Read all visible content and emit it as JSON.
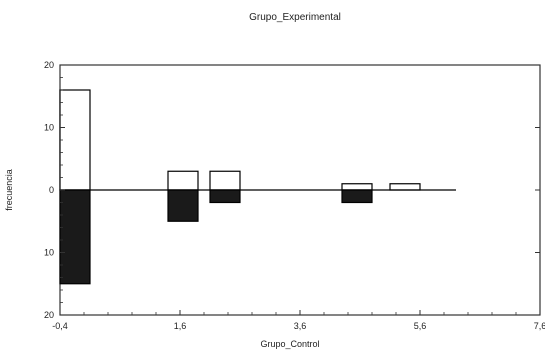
{
  "chart_data": {
    "type": "bar",
    "title": "Grupo_Experimental",
    "xlabel": "Grupo_Control",
    "ylabel": "frecuencia",
    "xlim": [
      -0.4,
      7.6
    ],
    "ylim": [
      -20,
      20
    ],
    "x_ticks": [
      -0.4,
      1.6,
      3.6,
      5.6,
      7.6
    ],
    "x_tick_labels": [
      "-0,4",
      "1,6",
      "3,6",
      "5,6",
      "7,6"
    ],
    "y_ticks": [
      20,
      10,
      0,
      -10,
      -20
    ],
    "y_tick_labels": [
      "20",
      "10",
      "0",
      "10",
      "20"
    ],
    "bar_width": 0.5,
    "baseline_end": 6.2,
    "series": [
      {
        "color": "#ffffff",
        "bars": [
          {
            "x": -0.15,
            "value": 16
          },
          {
            "x": 1.65,
            "value": 3
          },
          {
            "x": 2.35,
            "value": 3
          },
          {
            "x": 4.55,
            "value": 1
          },
          {
            "x": 5.35,
            "value": 1
          }
        ]
      },
      {
        "color": "#1a1a1a",
        "bars": [
          {
            "x": -0.15,
            "value": -15
          },
          {
            "x": 1.65,
            "value": -5
          },
          {
            "x": 2.35,
            "value": -2
          },
          {
            "x": 4.55,
            "value": -2
          }
        ]
      }
    ]
  }
}
